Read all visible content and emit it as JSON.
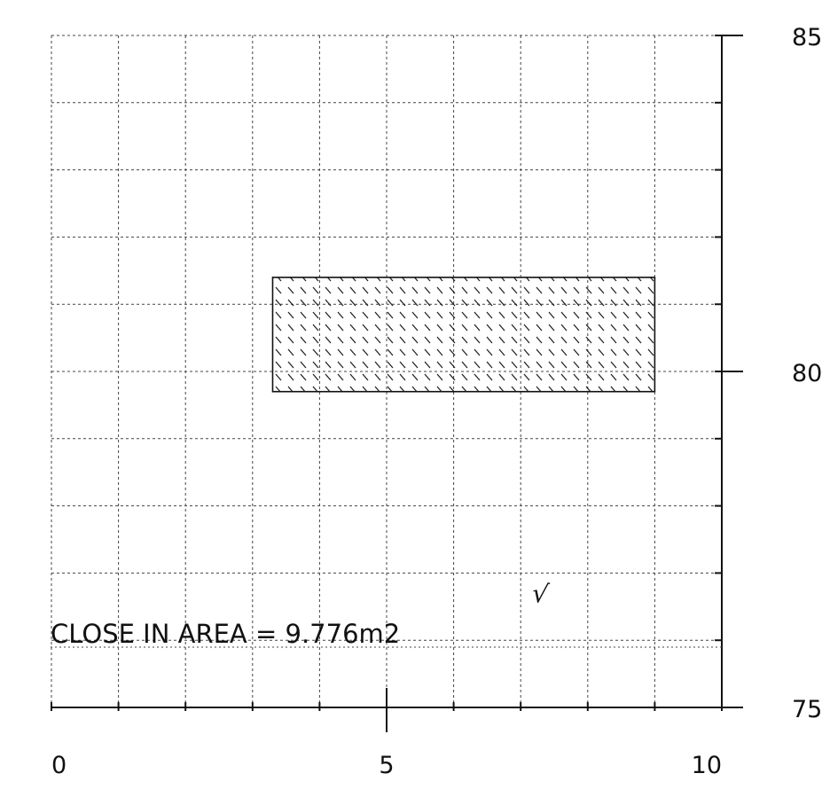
{
  "chart_data": {
    "type": "area",
    "title": "",
    "xlabel": "",
    "ylabel": "",
    "xlim": [
      0,
      10
    ],
    "ylim": [
      75,
      85
    ],
    "x_ticks": [
      "0",
      "5",
      "10"
    ],
    "y_ticks": [
      "85",
      "80",
      "75"
    ],
    "grid": true,
    "grid_step_x": 1,
    "grid_step_y": 1,
    "region": {
      "name": "close in area",
      "x": [
        3.3,
        9.0
      ],
      "y": [
        79.7,
        81.4
      ],
      "fill": "diagonal hatch"
    },
    "annotation": "CLOSE IN AREA = 9.776m2",
    "check_mark": "√",
    "colors": {
      "line": "#111111",
      "grid": "#444444"
    }
  }
}
